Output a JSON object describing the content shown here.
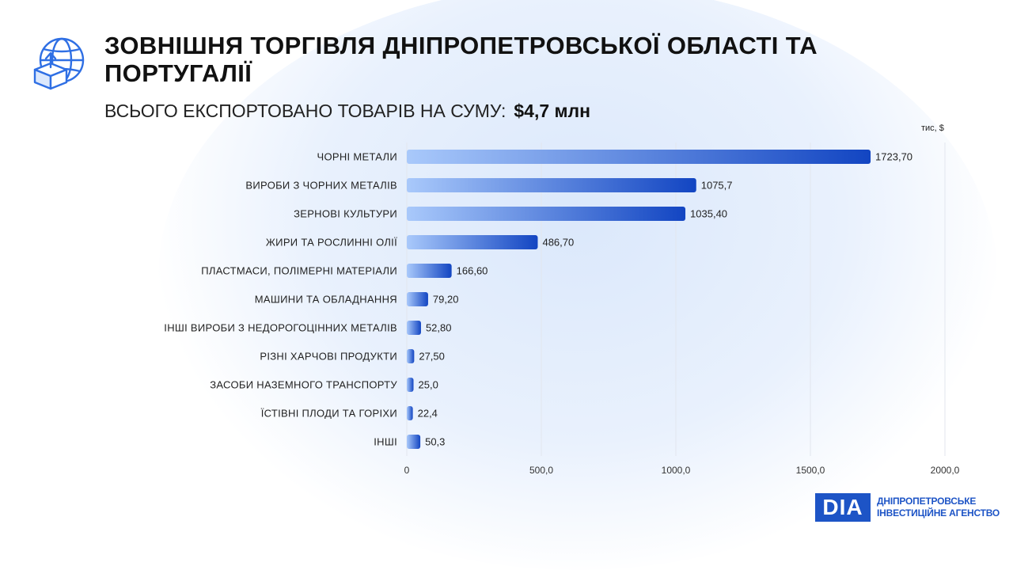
{
  "header": {
    "title": "ЗОВНІШНЯ ТОРГІВЛЯ ДНІПРОПЕТРОВСЬКОЇ ОБЛАСТІ ТА ПОРТУГАЛІЇ",
    "subtitle_prefix": "ВСЬОГО ЕКСПОРТОВАНО ТОВАРІВ НА СУМУ:",
    "subtitle_total": "$4,7 млн",
    "unit_label": "тис, $"
  },
  "icons": {
    "globe": "globe-export-icon"
  },
  "brand": {
    "mark": "DIA",
    "line1": "ДНІПРОПЕТРОВСЬКЕ",
    "line2": "ІНВЕСТИЦІЙНЕ АГЕНСТВО"
  },
  "colors": {
    "bar_start": "#a9c9fb",
    "bar_end": "#1245c2",
    "brand": "#1d54c6",
    "icon": "#2f6fe4"
  },
  "chart_data": {
    "type": "bar",
    "orientation": "horizontal",
    "categories": [
      "ЧОРНІ МЕТАЛИ",
      "ВИРОБИ З ЧОРНИХ МЕТАЛІВ",
      "ЗЕРНОВІ КУЛЬТУРИ",
      "ЖИРИ ТА РОСЛИННІ ОЛІЇ",
      "ПЛАСТМАСИ, ПОЛІМЕРНІ МАТЕРІАЛИ",
      "МАШИНИ ТА ОБЛАДНАННЯ",
      "ІНШІ ВИРОБИ З НЕДОРОГОЦІННИХ МЕТАЛІВ",
      "РІЗНІ ХАРЧОВІ ПРОДУКТИ",
      "ЗАСОБИ НАЗЕМНОГО ТРАНСПОРТУ",
      "ЇСТІВНІ ПЛОДИ ТА ГОРІХИ",
      "ІНШІ"
    ],
    "values": [
      1723.7,
      1075.7,
      1035.4,
      486.7,
      166.6,
      79.2,
      52.8,
      27.5,
      25.0,
      22.4,
      50.3
    ],
    "value_labels": [
      "1723,70",
      "1075,7",
      "1035,40",
      "486,70",
      "166,60",
      "79,20",
      "52,80",
      "27,50",
      "25,0",
      "22,4",
      "50,3"
    ],
    "xticks": [
      0,
      500,
      1000,
      1500,
      2000
    ],
    "xtick_labels": [
      "0",
      "500,0",
      "1000,0",
      "1500,0",
      "2000,0"
    ],
    "xlim": [
      0,
      2000
    ],
    "unit": "тис, $",
    "grid": true
  }
}
